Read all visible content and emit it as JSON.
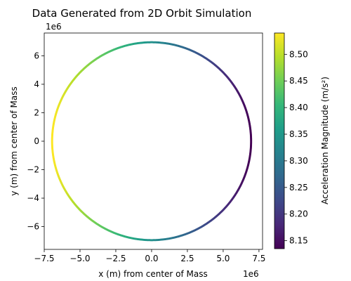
{
  "chart_data": {
    "type": "scatter",
    "title": "Data Generated from 2D Orbit Simulation",
    "xlabel": "x (m) from center of Mass",
    "ylabel": "y (m) from center of Mass",
    "x_offset_label": "1e6",
    "y_offset_label": "1e6",
    "xlim": [
      -7.5,
      7.75
    ],
    "ylim": [
      -7.6,
      7.6
    ],
    "x_ticks": [
      -7.5,
      -5.0,
      -2.5,
      0.0,
      2.5,
      5.0,
      7.5
    ],
    "x_tick_labels": [
      "−7.5",
      "−5.0",
      "−2.5",
      "0.0",
      "2.5",
      "5.0",
      "7.5"
    ],
    "y_ticks": [
      -6,
      -4,
      -2,
      0,
      2,
      4,
      6
    ],
    "y_tick_labels": [
      "−6",
      "−4",
      "−2",
      "0",
      "2",
      "4",
      "6"
    ],
    "grid": false,
    "series": [
      {
        "shape": "circle",
        "center": [
          0.0,
          0.0
        ],
        "radius": 6.95,
        "color_min_at": "right",
        "color_max_at": "left"
      }
    ],
    "colorbar": {
      "label": "Acceleration Magnitude (m/s²)",
      "min": 8.135,
      "max": 8.54,
      "ticks": [
        8.15,
        8.2,
        8.25,
        8.3,
        8.35,
        8.4,
        8.45,
        8.5
      ],
      "tick_labels": [
        "8.15",
        "8.20",
        "8.25",
        "8.30",
        "8.35",
        "8.40",
        "8.45",
        "8.50"
      ],
      "colormap": "viridis",
      "colors": [
        "#440154",
        "#482878",
        "#3e4989",
        "#31688e",
        "#26828e",
        "#1f9e89",
        "#35b779",
        "#6ece58",
        "#b5de2b",
        "#fde725"
      ]
    }
  }
}
